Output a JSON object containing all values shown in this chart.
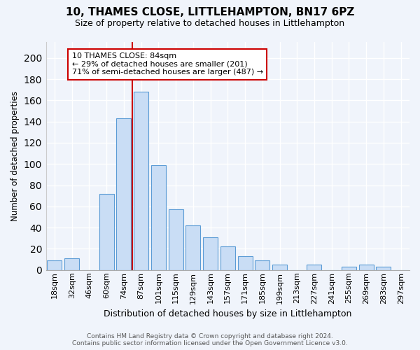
{
  "title": "10, THAMES CLOSE, LITTLEHAMPTON, BN17 6PZ",
  "subtitle": "Size of property relative to detached houses in Littlehampton",
  "xlabel": "Distribution of detached houses by size in Littlehampton",
  "ylabel": "Number of detached properties",
  "bar_labels": [
    "18sqm",
    "32sqm",
    "46sqm",
    "60sqm",
    "74sqm",
    "87sqm",
    "101sqm",
    "115sqm",
    "129sqm",
    "143sqm",
    "157sqm",
    "171sqm",
    "185sqm",
    "199sqm",
    "213sqm",
    "227sqm",
    "241sqm",
    "255sqm",
    "269sqm",
    "283sqm",
    "297sqm"
  ],
  "bar_values": [
    9,
    11,
    0,
    72,
    143,
    168,
    99,
    57,
    42,
    31,
    22,
    13,
    9,
    5,
    0,
    5,
    0,
    3,
    5,
    3,
    0
  ],
  "bar_color": "#c9ddf5",
  "bar_edge_color": "#5b9bd5",
  "vline_color": "#cc0000",
  "vline_x_idx": 5,
  "annotation_title": "10 THAMES CLOSE: 84sqm",
  "annotation_line1": "← 29% of detached houses are smaller (201)",
  "annotation_line2": "71% of semi-detached houses are larger (487) →",
  "annotation_border_color": "#cc0000",
  "ylim": [
    0,
    215
  ],
  "yticks": [
    0,
    20,
    40,
    60,
    80,
    100,
    120,
    140,
    160,
    180,
    200
  ],
  "footnote1": "Contains HM Land Registry data © Crown copyright and database right 2024.",
  "footnote2": "Contains public sector information licensed under the Open Government Licence v3.0.",
  "background_color": "#f0f4fb",
  "plot_bg_color": "#f0f4fb",
  "grid_color": "#ffffff",
  "title_fontsize": 11,
  "subtitle_fontsize": 9,
  "xlabel_fontsize": 9,
  "ylabel_fontsize": 8.5,
  "tick_fontsize": 8,
  "footnote_fontsize": 6.5
}
